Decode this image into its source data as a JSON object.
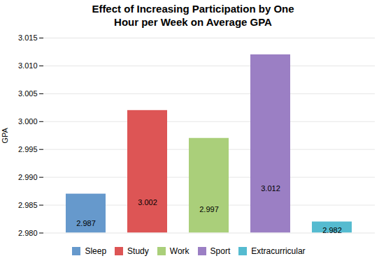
{
  "chart_data": {
    "type": "bar",
    "title": "Effect of Increasing  Participation by One\nHour per Week on Average GPA",
    "ylabel": "GPA",
    "categories": [
      "Sleep",
      "Study",
      "Work",
      "Sport",
      "Extracurricular"
    ],
    "values": [
      2.987,
      3.002,
      2.997,
      3.012,
      2.982
    ],
    "colors": [
      "#6699cc",
      "#dd5555",
      "#aacf7a",
      "#9b7fc4",
      "#55bbd0"
    ],
    "ylim": [
      2.98,
      3.015
    ],
    "yticks": [
      {
        "value": 2.98,
        "label": "2.980"
      },
      {
        "value": 2.985,
        "label": "2.985"
      },
      {
        "value": 2.99,
        "label": "2.990"
      },
      {
        "value": 2.995,
        "label": "2.995"
      },
      {
        "value": 3.0,
        "label": "3.000"
      },
      {
        "value": 3.005,
        "label": "3.005"
      },
      {
        "value": 3.01,
        "label": "3.010"
      },
      {
        "value": 3.015,
        "label": "3.015"
      }
    ],
    "grid": true,
    "data_labels": true,
    "legend": "bottom",
    "tick_labels": "y"
  }
}
